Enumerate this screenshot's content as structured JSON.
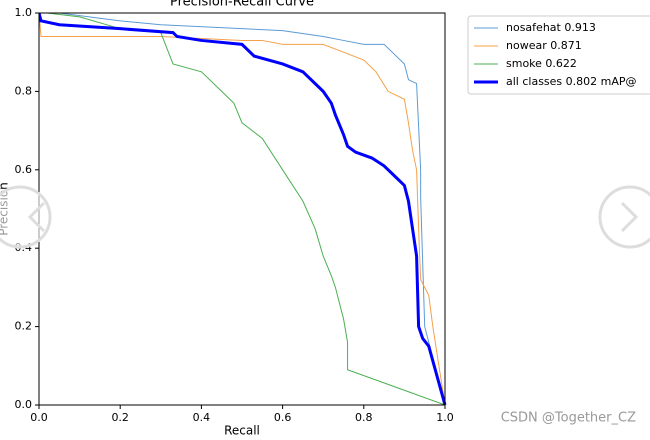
{
  "chart_data": {
    "type": "line",
    "title": "Precision-Recall Curve",
    "x_label": "Recall",
    "y_label": "Precision",
    "xlim": [
      0,
      1
    ],
    "ylim": [
      0,
      1
    ],
    "xticks": [
      {
        "value": 0,
        "label": "0.0"
      },
      0.2,
      0.4,
      0.6,
      0.8,
      {
        "value": 1,
        "label": "1.0"
      }
    ],
    "yticks": [
      {
        "value": 0,
        "label": "0.0"
      },
      0.2,
      0.4,
      0.6,
      0.8,
      {
        "value": 1,
        "label": "1.0"
      }
    ],
    "legend": "upper-left-outside",
    "series": [
      {
        "name": "nosafehat 0.913",
        "color": "#5b9bd5",
        "width": 1,
        "x": [
          0,
          0.05,
          0.2,
          0.3,
          0.5,
          0.6,
          0.7,
          0.75,
          0.8,
          0.85,
          0.87,
          0.9,
          0.91,
          0.93,
          0.94,
          0.94,
          0.95,
          1.0
        ],
        "values": [
          1,
          1,
          0.98,
          0.97,
          0.96,
          0.955,
          0.94,
          0.93,
          0.92,
          0.92,
          0.9,
          0.87,
          0.83,
          0.82,
          0.6,
          0.53,
          0.2,
          0
        ]
      },
      {
        "name": "nowear 0.871",
        "color": "#f5a04a",
        "width": 1,
        "x": [
          0,
          0.005,
          0.3,
          0.5,
          0.55,
          0.6,
          0.7,
          0.75,
          0.8,
          0.83,
          0.86,
          0.9,
          0.91,
          0.92,
          0.93,
          0.935,
          0.94,
          0.96,
          0.97,
          1.0
        ],
        "values": [
          1,
          0.94,
          0.94,
          0.93,
          0.93,
          0.92,
          0.92,
          0.9,
          0.88,
          0.85,
          0.8,
          0.78,
          0.72,
          0.65,
          0.6,
          0.45,
          0.32,
          0.28,
          0.2,
          0
        ]
      },
      {
        "name": "smoke 0.622",
        "color": "#4caf50",
        "width": 1,
        "x": [
          0,
          0.02,
          0.1,
          0.2,
          0.3,
          0.33,
          0.4,
          0.45,
          0.48,
          0.5,
          0.55,
          0.6,
          0.65,
          0.68,
          0.7,
          0.72,
          0.73,
          0.75,
          0.76,
          0.76,
          1.0
        ],
        "values": [
          1,
          1,
          0.99,
          0.96,
          0.95,
          0.87,
          0.85,
          0.8,
          0.77,
          0.72,
          0.68,
          0.6,
          0.52,
          0.45,
          0.38,
          0.33,
          0.3,
          0.22,
          0.16,
          0.09,
          0
        ]
      },
      {
        "name": "all classes 0.802 mAP@",
        "color": "#0000ff",
        "width": 3,
        "x": [
          0,
          0.005,
          0.05,
          0.2,
          0.33,
          0.34,
          0.4,
          0.5,
          0.53,
          0.6,
          0.65,
          0.7,
          0.72,
          0.73,
          0.75,
          0.76,
          0.78,
          0.82,
          0.85,
          0.88,
          0.9,
          0.91,
          0.92,
          0.93,
          0.935,
          0.945,
          0.96,
          1.0
        ],
        "values": [
          1,
          0.98,
          0.97,
          0.96,
          0.95,
          0.94,
          0.93,
          0.92,
          0.89,
          0.87,
          0.85,
          0.8,
          0.77,
          0.74,
          0.69,
          0.66,
          0.645,
          0.63,
          0.61,
          0.58,
          0.56,
          0.52,
          0.45,
          0.38,
          0.2,
          0.17,
          0.15,
          0
        ]
      }
    ]
  },
  "watermark": "CSDN @Together_CZ"
}
